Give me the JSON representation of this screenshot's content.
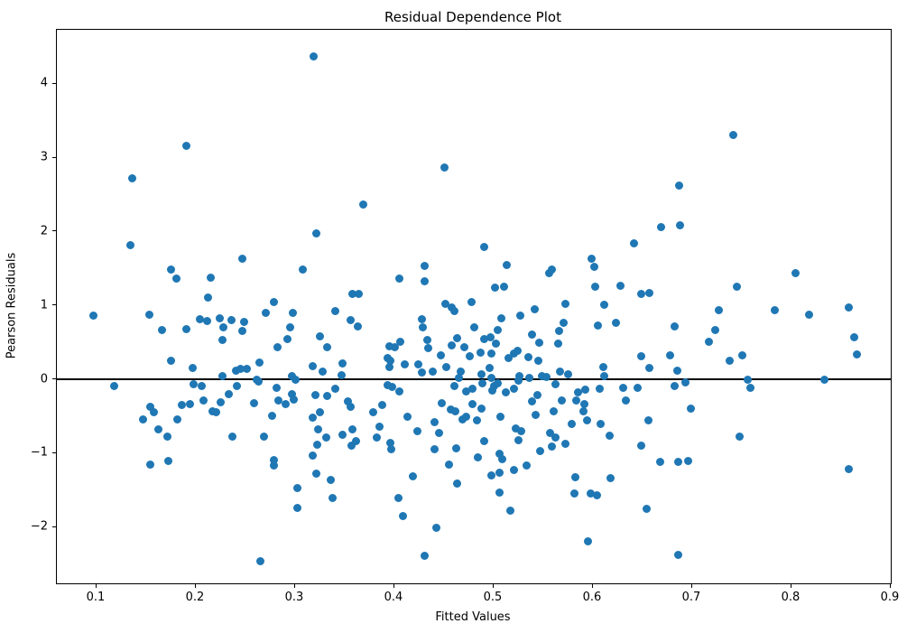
{
  "figure": {
    "title": "Residual Dependence Plot",
    "xlabel": "Fitted Values",
    "ylabel": "Pearson Residuals"
  },
  "chart_data": {
    "type": "scatter",
    "title": "Residual Dependence Plot",
    "xlabel": "Fitted Values",
    "ylabel": "Pearson Residuals",
    "xlim": [
      0.06,
      0.9
    ],
    "ylim": [
      -2.76,
      4.73
    ],
    "x_ticks": [
      0.1,
      0.2,
      0.3,
      0.4,
      0.5,
      0.6,
      0.7,
      0.8,
      0.9
    ],
    "x_tick_labels": [
      "0.1",
      "0.2",
      "0.3",
      "0.4",
      "0.5",
      "0.6",
      "0.7",
      "0.8",
      "0.9"
    ],
    "y_ticks": [
      -2,
      -1,
      0,
      1,
      2,
      3,
      4
    ],
    "y_tick_labels": [
      "−2",
      "−1",
      "0",
      "1",
      "2",
      "3",
      "4"
    ],
    "grid": false,
    "legend": null,
    "marker_color": "#1f77b4",
    "marker_size_px": 9,
    "reference_line": {
      "y": 0,
      "color": "#000000"
    },
    "points": [
      [
        0.319,
        4.37
      ],
      [
        0.19,
        3.16
      ],
      [
        0.136,
        2.72
      ],
      [
        0.741,
        3.31
      ],
      [
        0.687,
        2.62
      ],
      [
        0.45,
        2.87
      ],
      [
        0.369,
        2.37
      ],
      [
        0.321,
        1.97
      ],
      [
        0.669,
        2.06
      ],
      [
        0.688,
        2.08
      ],
      [
        0.641,
        1.84
      ],
      [
        0.134,
        1.82
      ],
      [
        0.247,
        1.63
      ],
      [
        0.175,
        1.48
      ],
      [
        0.18,
        1.36
      ],
      [
        0.215,
        1.37
      ],
      [
        0.308,
        1.49
      ],
      [
        0.49,
        1.79
      ],
      [
        0.43,
        1.53
      ],
      [
        0.513,
        1.55
      ],
      [
        0.599,
        1.63
      ],
      [
        0.601,
        1.52
      ],
      [
        0.556,
        1.44
      ],
      [
        0.559,
        1.48
      ],
      [
        0.405,
        1.36
      ],
      [
        0.43,
        1.33
      ],
      [
        0.501,
        1.24
      ],
      [
        0.51,
        1.25
      ],
      [
        0.602,
        1.25
      ],
      [
        0.628,
        1.27
      ],
      [
        0.649,
        1.16
      ],
      [
        0.657,
        1.17
      ],
      [
        0.745,
        1.25
      ],
      [
        0.804,
        1.44
      ],
      [
        0.358,
        1.15
      ],
      [
        0.364,
        1.15
      ],
      [
        0.212,
        1.11
      ],
      [
        0.097,
        0.86
      ],
      [
        0.153,
        0.88
      ],
      [
        0.204,
        0.81
      ],
      [
        0.211,
        0.79
      ],
      [
        0.224,
        0.83
      ],
      [
        0.236,
        0.8
      ],
      [
        0.249,
        0.78
      ],
      [
        0.27,
        0.9
      ],
      [
        0.279,
        1.04
      ],
      [
        0.298,
        0.9
      ],
      [
        0.478,
        1.05
      ],
      [
        0.451,
        1.02
      ],
      [
        0.458,
        0.97
      ],
      [
        0.46,
        0.92
      ],
      [
        0.34,
        0.93
      ],
      [
        0.356,
        0.8
      ],
      [
        0.363,
        0.72
      ],
      [
        0.527,
        0.86
      ],
      [
        0.508,
        0.83
      ],
      [
        0.541,
        0.95
      ],
      [
        0.572,
        1.02
      ],
      [
        0.611,
        1.01
      ],
      [
        0.727,
        0.94
      ],
      [
        0.783,
        0.94
      ],
      [
        0.818,
        0.88
      ],
      [
        0.858,
        0.97
      ],
      [
        0.428,
        0.82
      ],
      [
        0.429,
        0.71
      ],
      [
        0.48,
        0.71
      ],
      [
        0.166,
        0.67
      ],
      [
        0.19,
        0.68
      ],
      [
        0.228,
        0.7
      ],
      [
        0.247,
        0.66
      ],
      [
        0.295,
        0.7
      ],
      [
        0.292,
        0.55
      ],
      [
        0.282,
        0.43
      ],
      [
        0.325,
        0.58
      ],
      [
        0.332,
        0.44
      ],
      [
        0.605,
        0.73
      ],
      [
        0.623,
        0.77
      ],
      [
        0.57,
        0.77
      ],
      [
        0.566,
        0.65
      ],
      [
        0.565,
        0.48
      ],
      [
        0.546,
        0.5
      ],
      [
        0.504,
        0.67
      ],
      [
        0.539,
        0.61
      ],
      [
        0.463,
        0.56
      ],
      [
        0.47,
        0.44
      ],
      [
        0.49,
        0.54
      ],
      [
        0.497,
        0.57
      ],
      [
        0.502,
        0.48
      ],
      [
        0.498,
        0.35
      ],
      [
        0.458,
        0.46
      ],
      [
        0.433,
        0.53
      ],
      [
        0.434,
        0.42
      ],
      [
        0.395,
        0.45
      ],
      [
        0.4,
        0.44
      ],
      [
        0.406,
        0.51
      ],
      [
        0.682,
        0.72
      ],
      [
        0.723,
        0.67
      ],
      [
        0.717,
        0.51
      ],
      [
        0.863,
        0.57
      ],
      [
        0.524,
        0.39
      ],
      [
        0.52,
        0.35
      ],
      [
        0.227,
        0.53
      ],
      [
        0.393,
        0.29
      ],
      [
        0.396,
        0.25
      ],
      [
        0.395,
        0.17
      ],
      [
        0.447,
        0.32
      ],
      [
        0.515,
        0.29
      ],
      [
        0.535,
        0.3
      ],
      [
        0.545,
        0.25
      ],
      [
        0.348,
        0.22
      ],
      [
        0.347,
        0.06
      ],
      [
        0.41,
        0.2
      ],
      [
        0.424,
        0.2
      ],
      [
        0.452,
        0.17
      ],
      [
        0.428,
        0.09
      ],
      [
        0.439,
        0.11
      ],
      [
        0.467,
        0.11
      ],
      [
        0.465,
        0.02
      ],
      [
        0.488,
        0.07
      ],
      [
        0.496,
        0.16
      ],
      [
        0.498,
        0.02
      ],
      [
        0.526,
        0.04
      ],
      [
        0.536,
        0.02
      ],
      [
        0.549,
        0.04
      ],
      [
        0.553,
        0.03
      ],
      [
        0.567,
        0.11
      ],
      [
        0.575,
        0.07
      ],
      [
        0.61,
        0.17
      ],
      [
        0.611,
        0.04
      ],
      [
        0.227,
        0.05
      ],
      [
        0.24,
        0.12
      ],
      [
        0.245,
        0.14
      ],
      [
        0.251,
        0.14
      ],
      [
        0.261,
        0.0
      ],
      [
        0.297,
        0.04
      ],
      [
        0.3,
        0.0
      ],
      [
        0.318,
        0.18
      ],
      [
        0.328,
        0.1
      ],
      [
        0.476,
        0.31
      ],
      [
        0.487,
        0.36
      ],
      [
        0.649,
        0.31
      ],
      [
        0.657,
        0.16
      ],
      [
        0.678,
        0.33
      ],
      [
        0.685,
        0.12
      ],
      [
        0.738,
        0.25
      ],
      [
        0.75,
        0.33
      ],
      [
        0.756,
        0.0
      ],
      [
        0.833,
        0.0
      ],
      [
        0.866,
        0.34
      ],
      [
        0.197,
        0.15
      ],
      [
        0.175,
        0.25
      ],
      [
        0.264,
        0.23
      ],
      [
        0.118,
        -0.09
      ],
      [
        0.198,
        -0.07
      ],
      [
        0.206,
        -0.09
      ],
      [
        0.241,
        -0.09
      ],
      [
        0.233,
        -0.2
      ],
      [
        0.263,
        -0.03
      ],
      [
        0.281,
        -0.11
      ],
      [
        0.297,
        -0.2
      ],
      [
        0.32,
        -0.21
      ],
      [
        0.332,
        -0.22
      ],
      [
        0.34,
        -0.13
      ],
      [
        0.398,
        -0.1
      ],
      [
        0.405,
        -0.16
      ],
      [
        0.393,
        -0.08
      ],
      [
        0.46,
        -0.09
      ],
      [
        0.472,
        -0.16
      ],
      [
        0.479,
        -0.13
      ],
      [
        0.489,
        -0.05
      ],
      [
        0.499,
        -0.15
      ],
      [
        0.5,
        -0.09
      ],
      [
        0.504,
        -0.05
      ],
      [
        0.512,
        -0.17
      ],
      [
        0.52,
        -0.13
      ],
      [
        0.525,
        -0.02
      ],
      [
        0.562,
        -0.07
      ],
      [
        0.544,
        -0.21
      ],
      [
        0.585,
        -0.18
      ],
      [
        0.592,
        -0.14
      ],
      [
        0.607,
        -0.13
      ],
      [
        0.63,
        -0.12
      ],
      [
        0.645,
        -0.11
      ],
      [
        0.682,
        -0.09
      ],
      [
        0.693,
        -0.04
      ],
      [
        0.759,
        -0.12
      ],
      [
        0.154,
        -0.37
      ],
      [
        0.158,
        -0.44
      ],
      [
        0.147,
        -0.54
      ],
      [
        0.186,
        -0.35
      ],
      [
        0.194,
        -0.33
      ],
      [
        0.181,
        -0.54
      ],
      [
        0.208,
        -0.28
      ],
      [
        0.217,
        -0.43
      ],
      [
        0.22,
        -0.45
      ],
      [
        0.225,
        -0.31
      ],
      [
        0.259,
        -0.32
      ],
      [
        0.277,
        -0.49
      ],
      [
        0.283,
        -0.29
      ],
      [
        0.29,
        -0.34
      ],
      [
        0.299,
        -0.27
      ],
      [
        0.318,
        -0.52
      ],
      [
        0.325,
        -0.44
      ],
      [
        0.353,
        -0.3
      ],
      [
        0.356,
        -0.37
      ],
      [
        0.379,
        -0.44
      ],
      [
        0.388,
        -0.35
      ],
      [
        0.413,
        -0.51
      ],
      [
        0.448,
        -0.32
      ],
      [
        0.457,
        -0.41
      ],
      [
        0.461,
        -0.43
      ],
      [
        0.479,
        -0.33
      ],
      [
        0.488,
        -0.4
      ],
      [
        0.507,
        -0.5
      ],
      [
        0.539,
        -0.3
      ],
      [
        0.542,
        -0.48
      ],
      [
        0.56,
        -0.43
      ],
      [
        0.569,
        -0.28
      ],
      [
        0.583,
        -0.29
      ],
      [
        0.591,
        -0.33
      ],
      [
        0.59,
        -0.43
      ],
      [
        0.608,
        -0.6
      ],
      [
        0.633,
        -0.29
      ],
      [
        0.656,
        -0.56
      ],
      [
        0.699,
        -0.4
      ],
      [
        0.162,
        -0.68
      ],
      [
        0.171,
        -0.78
      ],
      [
        0.237,
        -0.77
      ],
      [
        0.269,
        -0.77
      ],
      [
        0.323,
        -0.68
      ],
      [
        0.331,
        -0.79
      ],
      [
        0.322,
        -0.89
      ],
      [
        0.318,
        -1.03
      ],
      [
        0.348,
        -0.75
      ],
      [
        0.358,
        -0.68
      ],
      [
        0.361,
        -0.83
      ],
      [
        0.357,
        -0.9
      ],
      [
        0.385,
        -0.64
      ],
      [
        0.382,
        -0.79
      ],
      [
        0.396,
        -0.86
      ],
      [
        0.397,
        -0.95
      ],
      [
        0.44,
        -0.58
      ],
      [
        0.445,
        -0.72
      ],
      [
        0.44,
        -0.95
      ],
      [
        0.423,
        -0.7
      ],
      [
        0.462,
        -0.93
      ],
      [
        0.469,
        -0.54
      ],
      [
        0.472,
        -0.5
      ],
      [
        0.483,
        -0.56
      ],
      [
        0.49,
        -0.83
      ],
      [
        0.522,
        -0.66
      ],
      [
        0.528,
        -0.7
      ],
      [
        0.525,
        -0.82
      ],
      [
        0.557,
        -0.72
      ],
      [
        0.562,
        -0.79
      ],
      [
        0.559,
        -0.91
      ],
      [
        0.572,
        -0.87
      ],
      [
        0.579,
        -0.6
      ],
      [
        0.594,
        -0.55
      ],
      [
        0.617,
        -0.76
      ],
      [
        0.649,
        -0.9
      ],
      [
        0.748,
        -0.77
      ],
      [
        0.484,
        -1.06
      ],
      [
        0.506,
        -1.01
      ],
      [
        0.509,
        -1.08
      ],
      [
        0.547,
        -0.97
      ],
      [
        0.154,
        -1.15
      ],
      [
        0.172,
        -1.1
      ],
      [
        0.279,
        -1.09
      ],
      [
        0.279,
        -1.17
      ],
      [
        0.321,
        -1.27
      ],
      [
        0.336,
        -1.36
      ],
      [
        0.302,
        -1.47
      ],
      [
        0.455,
        -1.15
      ],
      [
        0.419,
        -1.31
      ],
      [
        0.463,
        -1.41
      ],
      [
        0.533,
        -1.16
      ],
      [
        0.52,
        -1.23
      ],
      [
        0.506,
        -1.26
      ],
      [
        0.498,
        -1.3
      ],
      [
        0.582,
        -1.32
      ],
      [
        0.618,
        -1.34
      ],
      [
        0.668,
        -1.12
      ],
      [
        0.686,
        -1.12
      ],
      [
        0.696,
        -1.1
      ],
      [
        0.858,
        -1.22
      ],
      [
        0.302,
        -1.74
      ],
      [
        0.338,
        -1.6
      ],
      [
        0.404,
        -1.6
      ],
      [
        0.409,
        -1.85
      ],
      [
        0.506,
        -1.53
      ],
      [
        0.517,
        -1.78
      ],
      [
        0.581,
        -1.54
      ],
      [
        0.598,
        -1.55
      ],
      [
        0.604,
        -1.57
      ],
      [
        0.654,
        -1.75
      ],
      [
        0.442,
        -2.01
      ],
      [
        0.595,
        -2.19
      ],
      [
        0.43,
        -2.39
      ],
      [
        0.686,
        -2.37
      ],
      [
        0.265,
        -2.46
      ]
    ]
  }
}
